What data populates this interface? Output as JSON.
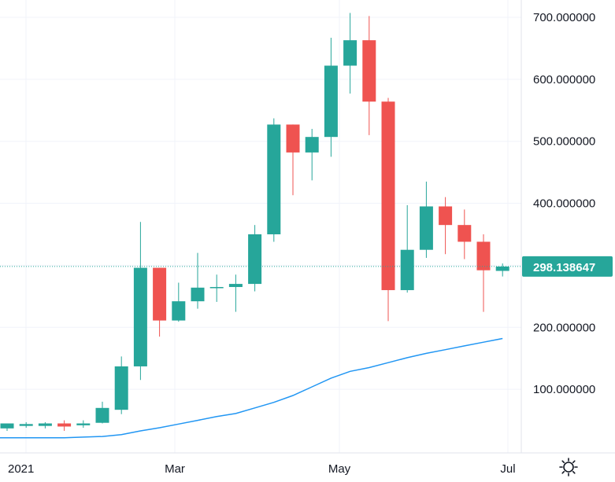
{
  "colors": {
    "up": "#26a69a",
    "down": "#ef5350",
    "ma": "#2196f3",
    "grid": "#f0f3fa",
    "axis_text": "#131722",
    "price_line": "#26a69a"
  },
  "icons": {
    "settings": "gear-icon"
  },
  "chart_data": {
    "type": "candlestick",
    "interval": "weekly",
    "ylim": [
      0,
      720
    ],
    "y_ticks": [
      100,
      200,
      300,
      400,
      500,
      600,
      700
    ],
    "y_tick_labels": [
      "100.000000",
      "200.000000",
      "300.000000",
      "400.000000",
      "500.000000",
      "600.000000",
      "700.000000"
    ],
    "x_labels": [
      "2021",
      "Mar",
      "May",
      "Jul"
    ],
    "last_price": 298.138647,
    "last_price_label": "298.138647",
    "candles": [
      {
        "open": 37,
        "high": 45,
        "low": 33,
        "close": 45
      },
      {
        "open": 41,
        "high": 47,
        "low": 38,
        "close": 44
      },
      {
        "open": 41,
        "high": 47,
        "low": 37,
        "close": 45
      },
      {
        "open": 45,
        "high": 50,
        "low": 33,
        "close": 40
      },
      {
        "open": 42,
        "high": 50,
        "low": 38,
        "close": 45
      },
      {
        "open": 46,
        "high": 80,
        "low": 45,
        "close": 70
      },
      {
        "open": 67,
        "high": 153,
        "low": 60,
        "close": 137
      },
      {
        "open": 137,
        "high": 370,
        "low": 115,
        "close": 296
      },
      {
        "open": 296,
        "high": 296,
        "low": 185,
        "close": 211
      },
      {
        "open": 211,
        "high": 272,
        "low": 209,
        "close": 242
      },
      {
        "open": 242,
        "high": 320,
        "low": 230,
        "close": 264
      },
      {
        "open": 264,
        "high": 285,
        "low": 241,
        "close": 265
      },
      {
        "open": 265,
        "high": 285,
        "low": 225,
        "close": 270
      },
      {
        "open": 270,
        "high": 365,
        "low": 258,
        "close": 350
      },
      {
        "open": 350,
        "high": 537,
        "low": 338,
        "close": 527
      },
      {
        "open": 527,
        "high": 527,
        "low": 413,
        "close": 482
      },
      {
        "open": 482,
        "high": 520,
        "low": 437,
        "close": 507
      },
      {
        "open": 507,
        "high": 667,
        "low": 475,
        "close": 622
      },
      {
        "open": 622,
        "high": 707,
        "low": 577,
        "close": 663
      },
      {
        "open": 663,
        "high": 702,
        "low": 510,
        "close": 564
      },
      {
        "open": 564,
        "high": 570,
        "low": 210,
        "close": 260
      },
      {
        "open": 260,
        "high": 397,
        "low": 256,
        "close": 325
      },
      {
        "open": 325,
        "high": 435,
        "low": 312,
        "close": 395
      },
      {
        "open": 395,
        "high": 410,
        "low": 318,
        "close": 365
      },
      {
        "open": 365,
        "high": 390,
        "low": 310,
        "close": 338
      },
      {
        "open": 338,
        "high": 350,
        "low": 225,
        "close": 292
      },
      {
        "open": 291,
        "high": 303,
        "low": 282,
        "close": 298
      }
    ],
    "moving_average": [
      22,
      22,
      22,
      22,
      23,
      24,
      27,
      33,
      38,
      44,
      50,
      56,
      61,
      70,
      79,
      90,
      104,
      118,
      129,
      135,
      143,
      151,
      158,
      164,
      170,
      176,
      182
    ]
  }
}
